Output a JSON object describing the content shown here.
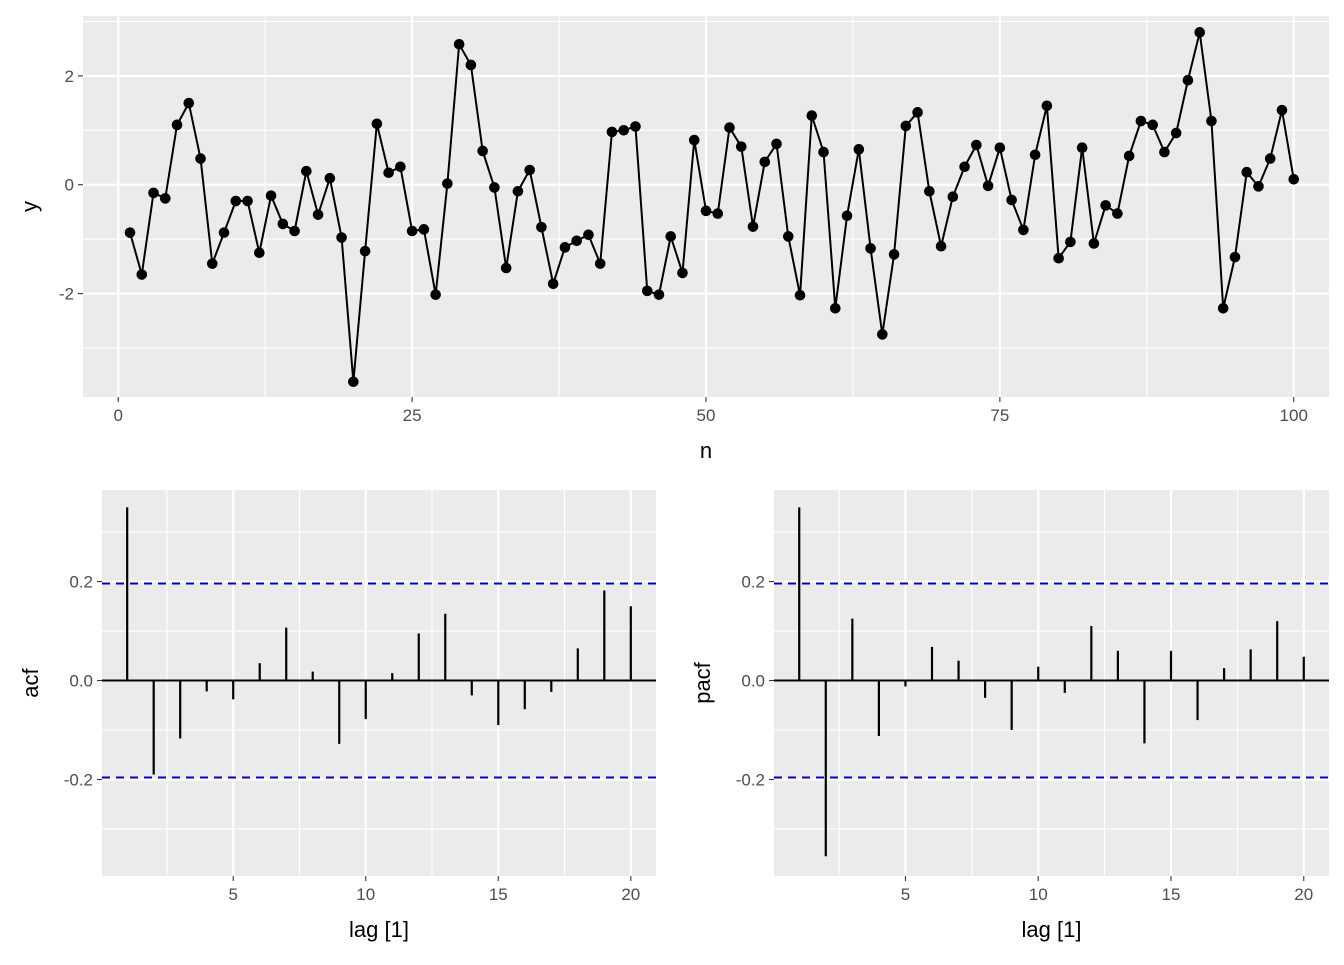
{
  "chart_data": [
    {
      "type": "line",
      "xlabel": "n",
      "ylabel": "y",
      "xlim": [
        -3,
        103
      ],
      "ylim": [
        -3.9,
        3.1
      ],
      "x_ticks": [
        0,
        25,
        50,
        75,
        100
      ],
      "x_tick_labels": [
        "0",
        "25",
        "50",
        "75",
        "100"
      ],
      "y_ticks": [
        -2,
        0,
        2
      ],
      "y_tick_labels": [
        "-2",
        "0",
        "2"
      ],
      "line_color": "#000000",
      "point_color": "#000000",
      "grid": true,
      "series": [
        {
          "x": [
            1,
            2,
            3,
            4,
            5,
            6,
            7,
            8,
            9,
            10,
            11,
            12,
            13,
            14,
            15,
            16,
            17,
            18,
            19,
            20,
            21,
            22,
            23,
            24,
            25,
            26,
            27,
            28,
            29,
            30,
            31,
            32,
            33,
            34,
            35,
            36,
            37,
            38,
            39,
            40,
            41,
            42,
            43,
            44,
            45,
            46,
            47,
            48,
            49,
            50,
            51,
            52,
            53,
            54,
            55,
            56,
            57,
            58,
            59,
            60,
            61,
            62,
            63,
            64,
            65,
            66,
            67,
            68,
            69,
            70,
            71,
            72,
            73,
            74,
            75,
            76,
            77,
            78,
            79,
            80,
            81,
            82,
            83,
            84,
            85,
            86,
            87,
            88,
            89,
            90,
            91,
            92,
            93,
            94,
            95,
            96,
            97,
            98,
            99,
            100
          ],
          "values": [
            -0.88,
            -1.65,
            -0.15,
            -0.25,
            1.1,
            1.5,
            0.48,
            -1.45,
            -0.88,
            -0.3,
            -0.3,
            -1.25,
            -0.2,
            -0.72,
            -0.85,
            0.25,
            -0.55,
            0.12,
            -0.97,
            -3.62,
            -1.22,
            1.12,
            0.22,
            0.33,
            -0.85,
            -0.82,
            -2.02,
            0.02,
            2.58,
            2.2,
            0.62,
            -0.05,
            -1.53,
            -0.12,
            0.27,
            -0.78,
            -1.82,
            -1.15,
            -1.03,
            -0.92,
            -1.45,
            0.97,
            1.0,
            1.07,
            -1.95,
            -2.02,
            -0.95,
            -1.62,
            0.82,
            -0.48,
            -0.53,
            1.05,
            0.7,
            -0.77,
            0.42,
            0.75,
            -0.95,
            -2.03,
            1.27,
            0.6,
            -2.27,
            -0.57,
            0.65,
            -1.17,
            -2.75,
            -1.28,
            1.08,
            1.33,
            -0.12,
            -1.13,
            -0.22,
            0.33,
            0.73,
            -0.02,
            0.68,
            -0.28,
            -0.83,
            0.55,
            1.45,
            -1.35,
            -1.05,
            0.68,
            -1.08,
            -0.38,
            -0.53,
            0.53,
            1.17,
            1.1,
            0.6,
            0.95,
            1.92,
            2.8,
            1.17,
            -2.27,
            -1.33,
            0.23,
            -0.03,
            0.48,
            1.37,
            0.1
          ]
        }
      ]
    },
    {
      "type": "bar",
      "xlabel": "lag [1]",
      "ylabel": "acf",
      "xlim": [
        0.05,
        20.95
      ],
      "ylim": [
        -0.395,
        0.385
      ],
      "x_ticks": [
        5,
        10,
        15,
        20
      ],
      "x_tick_labels": [
        "5",
        "10",
        "15",
        "20"
      ],
      "y_ticks": [
        -0.2,
        0.0,
        0.2
      ],
      "y_tick_labels": [
        "-0.2",
        "0.0",
        "0.2"
      ],
      "confidence_bound": 0.196,
      "confidence_color": "#0000CC",
      "grid": true,
      "series": [
        {
          "x": [
            1,
            2,
            3,
            4,
            5,
            6,
            7,
            8,
            9,
            10,
            11,
            12,
            13,
            14,
            15,
            16,
            17,
            18,
            19,
            20
          ],
          "values": [
            0.35,
            -0.19,
            -0.117,
            -0.022,
            -0.038,
            0.035,
            0.107,
            0.018,
            -0.128,
            -0.078,
            0.015,
            0.095,
            0.135,
            -0.03,
            -0.09,
            -0.058,
            -0.023,
            0.065,
            0.182,
            0.15
          ]
        }
      ]
    },
    {
      "type": "bar",
      "xlabel": "lag [1]",
      "ylabel": "pacf",
      "xlim": [
        0.05,
        20.95
      ],
      "ylim": [
        -0.395,
        0.385
      ],
      "x_ticks": [
        5,
        10,
        15,
        20
      ],
      "x_tick_labels": [
        "5",
        "10",
        "15",
        "20"
      ],
      "y_ticks": [
        -0.2,
        0.0,
        0.2
      ],
      "y_tick_labels": [
        "-0.2",
        "0.0",
        "0.2"
      ],
      "confidence_bound": 0.196,
      "confidence_color": "#0000CC",
      "grid": true,
      "series": [
        {
          "x": [
            1,
            2,
            3,
            4,
            5,
            6,
            7,
            8,
            9,
            10,
            11,
            12,
            13,
            14,
            15,
            16,
            17,
            18,
            19,
            20
          ],
          "values": [
            0.35,
            -0.355,
            0.125,
            -0.112,
            -0.012,
            0.068,
            0.04,
            -0.035,
            -0.1,
            0.028,
            -0.025,
            0.11,
            0.06,
            -0.127,
            0.06,
            -0.08,
            0.025,
            0.063,
            0.12,
            0.048
          ]
        }
      ]
    }
  ]
}
